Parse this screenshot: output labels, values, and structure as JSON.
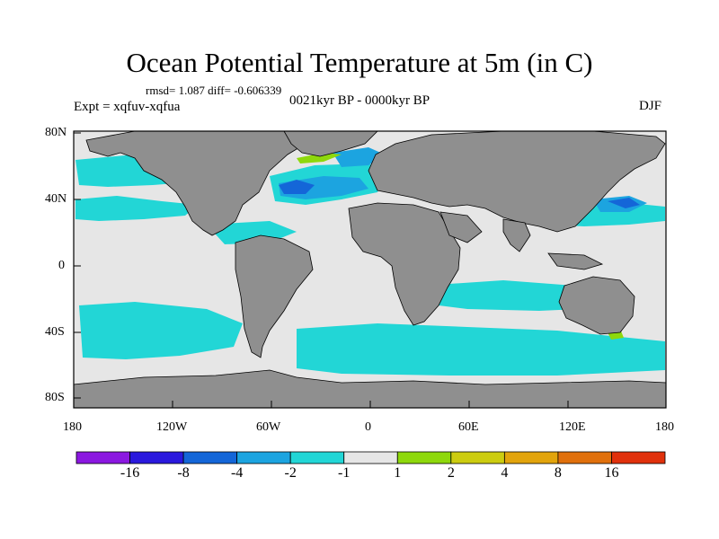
{
  "title": "Ocean Potential Temperature at 5m (in C)",
  "stats": "rmsd= 1.087  diff= -0.606339",
  "expt": "Expt = xqfuv-xqfua",
  "period": "0021kyr BP - 0000kyr BP",
  "season": "DJF",
  "lat_labels": [
    "80N",
    "40N",
    "0",
    "40S",
    "80S"
  ],
  "lon_labels": [
    "180",
    "120W",
    "60W",
    "0",
    "60E",
    "120E",
    "180"
  ],
  "colorbar": {
    "colors": [
      "#8b18e0",
      "#2a19dd",
      "#1466d8",
      "#1ca4e0",
      "#22d6d6",
      "#e6e6e6",
      "#8ed80c",
      "#cccc10",
      "#e2a40c",
      "#e0700c",
      "#e0310c"
    ],
    "labels": [
      "-16",
      "-8",
      "-4",
      "-2",
      "-1",
      "1",
      "2",
      "4",
      "8",
      "16"
    ]
  }
}
